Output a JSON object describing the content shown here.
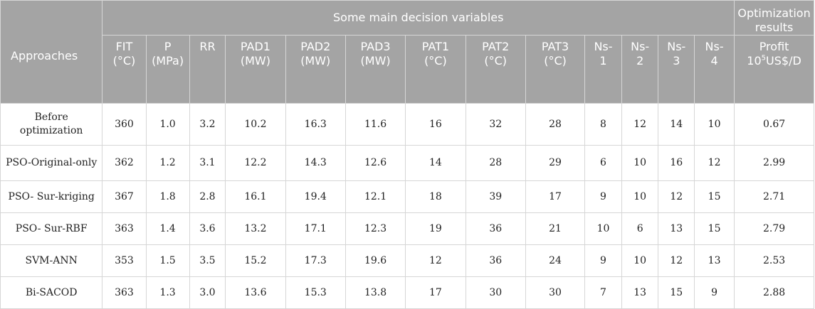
{
  "table": {
    "header": {
      "approaches": "Approaches",
      "group_label": "Some main decision variables",
      "optimization": "Optimization results",
      "columns": [
        {
          "name": "FIT",
          "unit": "(°C)"
        },
        {
          "name": "P",
          "unit": "(MPa)"
        },
        {
          "name": "RR",
          "unit": ""
        },
        {
          "name": "PAD1",
          "unit": "(MW)"
        },
        {
          "name": "PAD2",
          "unit": "(MW)"
        },
        {
          "name": "PAD3",
          "unit": "(MW)"
        },
        {
          "name": "PAT1",
          "unit": "(°C)"
        },
        {
          "name": "PAT2",
          "unit": "(°C)"
        },
        {
          "name": "PAT3",
          "unit": "(°C)"
        },
        {
          "name": "Ns-",
          "unit": "1"
        },
        {
          "name": "Ns-",
          "unit": "2"
        },
        {
          "name": "Ns-",
          "unit": "3"
        },
        {
          "name": "Ns-",
          "unit": "4"
        }
      ],
      "profit": {
        "name": "Profit",
        "unit_base": "10",
        "unit_exp": "5",
        "unit_rest": "US$/D"
      }
    },
    "rows": [
      {
        "approach": "Before optimization",
        "values": [
          "360",
          "1.0",
          "3.2",
          "10.2",
          "16.3",
          "11.6",
          "16",
          "32",
          "28",
          "8",
          "12",
          "14",
          "10"
        ],
        "profit": "0.67"
      },
      {
        "approach": "PSO-Original-only",
        "values": [
          "362",
          "1.2",
          "3.1",
          "12.2",
          "14.3",
          "12.6",
          "14",
          "28",
          "29",
          "6",
          "10",
          "16",
          "12"
        ],
        "profit": "2.99"
      },
      {
        "approach": "PSO- Sur-kriging",
        "values": [
          "367",
          "1.8",
          "2.8",
          "16.1",
          "19.4",
          "12.1",
          "18",
          "39",
          "17",
          "9",
          "10",
          "12",
          "15"
        ],
        "profit": "2.71"
      },
      {
        "approach": "PSO- Sur-RBF",
        "values": [
          "363",
          "1.4",
          "3.6",
          "13.2",
          "17.1",
          "12.3",
          "19",
          "36",
          "21",
          "10",
          "6",
          "13",
          "15"
        ],
        "profit": "2.79"
      },
      {
        "approach": "SVM-ANN",
        "values": [
          "353",
          "1.5",
          "3.5",
          "15.2",
          "17.3",
          "19.6",
          "12",
          "36",
          "24",
          "9",
          "10",
          "12",
          "13"
        ],
        "profit": "2.53"
      },
      {
        "approach": "Bi-SACOD",
        "values": [
          "363",
          "1.3",
          "3.0",
          "13.6",
          "15.3",
          "13.8",
          "17",
          "30",
          "30",
          "7",
          "13",
          "15",
          "9"
        ],
        "profit": "2.88"
      }
    ]
  }
}
